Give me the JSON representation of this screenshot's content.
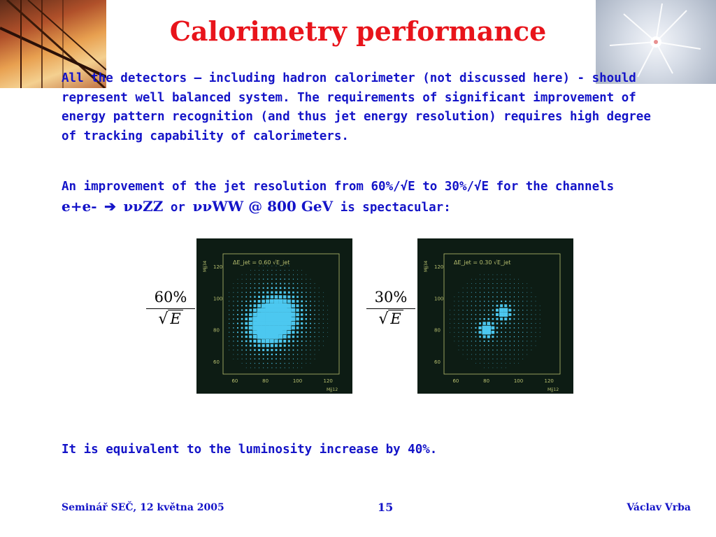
{
  "slide": {
    "title": "Calorimetry performance",
    "para1": "All the detectors – including hadron calorimeter (not discussed here) - should represent well balanced system. The requirements of significant improvement of energy pattern recognition (and thus jet energy resolution) requires high degree of tracking capability of calorimeters.",
    "para2_line1": "An improvement of the jet resolution from 60%/√E to 30%/√E for the channels",
    "para2_ee": "e+e-",
    "para2_arrow": "➔",
    "para2_zz": "ννZZ",
    "para2_or": "or",
    "para2_ww": "ννWW @ 800 GeV",
    "para2_tail": "is spectacular:",
    "para3": "It is equivalent to the luminosity increase by 40%."
  },
  "formulas": {
    "left": {
      "numerator": "60%",
      "denominator": "E",
      "root": "√"
    },
    "right": {
      "numerator": "30%",
      "denominator": "E",
      "root": "√"
    }
  },
  "plots": {
    "left": {
      "label": "ΔE_jet = 0.60 √E_jet",
      "ylabel": "Mjj34",
      "xlabel": "Mjj12",
      "xticks": [
        "60",
        "80",
        "100",
        "120"
      ],
      "yticks": [
        "120",
        "100",
        "80",
        "60"
      ]
    },
    "right": {
      "label": "ΔE_jet = 0.30 √E_jet",
      "ylabel": "Mjj34",
      "xlabel": "Mjj12",
      "xticks": [
        "60",
        "80",
        "100",
        "120"
      ],
      "yticks": [
        "120",
        "100",
        "80",
        "60"
      ]
    }
  },
  "footer": {
    "left": "Seminář SEČ, 12 května 2005",
    "page": "15",
    "right": "Václav Vrba"
  },
  "colors": {
    "title": "#e8141b",
    "body_text": "#1414c8",
    "plot_bg": "#0d1c14",
    "plot_mark": "#4cc8f0",
    "plot_axis": "#b8c070"
  }
}
